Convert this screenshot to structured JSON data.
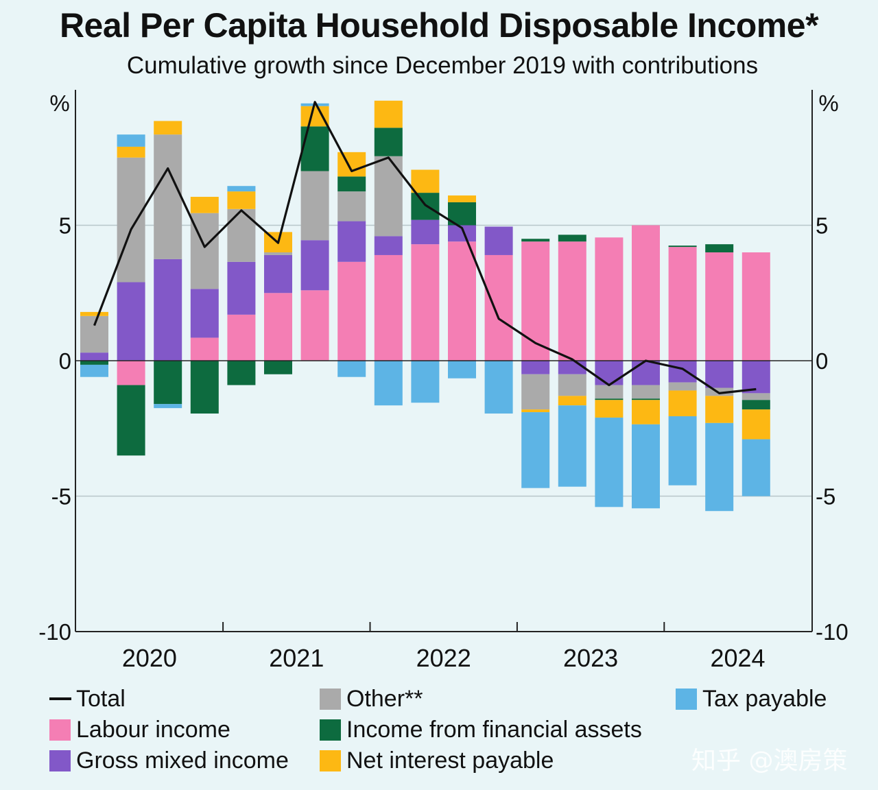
{
  "chart_data": {
    "type": "bar",
    "stacked": true,
    "title": "Real Per Capita Household Disposable Income*",
    "subtitle": "Cumulative growth since December 2019 with contributions",
    "y_unit_left": "%",
    "y_unit_right": "%",
    "ylim": [
      -10,
      10
    ],
    "yticks": [
      5,
      0,
      -5,
      -10
    ],
    "ytick_labels": [
      "5",
      "0",
      "-5",
      "-10"
    ],
    "x_year_labels": [
      "2020",
      "2021",
      "2022",
      "2023",
      "2024"
    ],
    "quarters": [
      "Mar-20",
      "Jun-20",
      "Sep-20",
      "Dec-20",
      "Mar-21",
      "Jun-21",
      "Sep-21",
      "Dec-21",
      "Mar-22",
      "Jun-22",
      "Sep-22",
      "Dec-22",
      "Mar-23",
      "Jun-23",
      "Sep-23",
      "Dec-23",
      "Mar-24",
      "Jun-24",
      "Sep-24"
    ],
    "series": [
      {
        "name": "Labour income",
        "color": "#f47eb4",
        "values": [
          0,
          -0.9,
          0,
          0.85,
          1.7,
          2.5,
          2.6,
          3.65,
          3.9,
          4.3,
          4.4,
          3.9,
          4.4,
          4.4,
          4.55,
          5.0,
          4.2,
          4.0,
          4.0
        ]
      },
      {
        "name": "Gross mixed income",
        "color": "#8258c8",
        "values": [
          0.3,
          2.9,
          3.75,
          1.8,
          1.95,
          1.4,
          1.85,
          1.5,
          0.7,
          0.9,
          0.6,
          1.05,
          -0.5,
          -0.5,
          -0.9,
          -0.9,
          -0.8,
          -1.0,
          -1.2
        ]
      },
      {
        "name": "Other**",
        "color": "#aaaaaa",
        "values": [
          1.35,
          4.6,
          4.6,
          2.8,
          1.95,
          0.1,
          2.55,
          1.1,
          2.95,
          0,
          0,
          0,
          -1.3,
          -0.8,
          -0.5,
          -0.5,
          -0.3,
          -0.3,
          -0.25
        ]
      },
      {
        "name": "Income from financial assets",
        "color": "#0d6b3f",
        "values": [
          -0.15,
          -2.6,
          -1.6,
          -1.95,
          -0.9,
          -0.5,
          1.65,
          0.55,
          1.05,
          1.0,
          0.85,
          0,
          0.1,
          0.25,
          -0.05,
          -0.05,
          0.05,
          0.3,
          -0.35
        ]
      },
      {
        "name": "Net interest payable",
        "color": "#fdb813",
        "values": [
          0.15,
          0.4,
          0.5,
          0.6,
          0.65,
          0.75,
          0.75,
          0.9,
          1.0,
          0.85,
          0.25,
          0,
          -0.1,
          -0.35,
          -0.65,
          -0.9,
          -0.95,
          -1.0,
          -1.1
        ]
      },
      {
        "name": "Tax payable",
        "color": "#5db4e5",
        "values": [
          -0.45,
          0.45,
          -0.15,
          0,
          0.2,
          0,
          0.1,
          -0.6,
          -1.65,
          -1.55,
          -0.65,
          -1.95,
          -2.8,
          -3.0,
          -3.3,
          -3.1,
          -2.55,
          -3.25,
          -2.1
        ]
      }
    ],
    "total": {
      "name": "Total",
      "color": "#111111",
      "values": [
        1.3,
        4.85,
        7.1,
        4.2,
        5.55,
        4.35,
        9.55,
        7.0,
        7.5,
        5.75,
        4.9,
        1.55,
        0.65,
        0.05,
        -0.9,
        0.0,
        -0.3,
        -1.2,
        -1.05
      ]
    },
    "legend": [
      {
        "label": "Total",
        "kind": "line",
        "color": "#111111"
      },
      {
        "label": "Other**",
        "kind": "box",
        "color": "#aaaaaa"
      },
      {
        "label": "Tax payable",
        "kind": "box",
        "color": "#5db4e5"
      },
      {
        "label": "Labour income",
        "kind": "box",
        "color": "#f47eb4"
      },
      {
        "label": "Income from financial assets",
        "kind": "box",
        "color": "#0d6b3f"
      },
      {
        "label": "Gross mixed income",
        "kind": "box",
        "color": "#8258c8"
      },
      {
        "label": "Net interest payable",
        "kind": "box",
        "color": "#fdb813"
      }
    ],
    "legend_position": "bottom"
  },
  "watermark": "知乎 @澳房策"
}
